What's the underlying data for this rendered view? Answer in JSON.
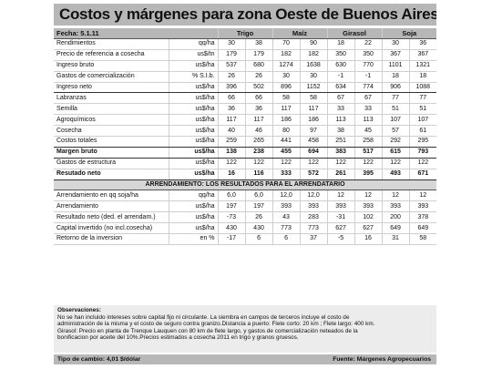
{
  "title": "Costos y márgenes para zona Oeste de Buenos Aires",
  "header": {
    "fecha": "Fecha: 5.1.11",
    "crops": [
      "Trigo",
      "Maíz",
      "Girasol",
      "Soja"
    ]
  },
  "rows": [
    {
      "label": "Rendimientos",
      "unit": "qq/ha",
      "values": [
        "30",
        "38",
        "70",
        "90",
        "18",
        "22",
        "30",
        "36"
      ]
    },
    {
      "label": "Precio de referencia a cosecha",
      "unit": "us$/tn",
      "values": [
        "179",
        "179",
        "182",
        "182",
        "350",
        "350",
        "367",
        "367"
      ]
    },
    {
      "label": "Ingreso bruto",
      "unit": "us$/ha",
      "values": [
        "537",
        "680",
        "1274",
        "1638",
        "630",
        "770",
        "1101",
        "1321"
      ]
    },
    {
      "label": "Gastos de comercialización",
      "unit": "% S.I.b.",
      "values": [
        "26",
        "26",
        "30",
        "30",
        "-1",
        "-1",
        "18",
        "18"
      ]
    },
    {
      "label": "Ingreso neto",
      "unit": "us$/ha",
      "values": [
        "396",
        "502",
        "896",
        "1152",
        "634",
        "774",
        "906",
        "1088"
      ]
    },
    {
      "label": "Labranzas",
      "unit": "us$/ha",
      "values": [
        "66",
        "66",
        "58",
        "58",
        "67",
        "67",
        "77",
        "77"
      ]
    },
    {
      "label": "Semilla",
      "unit": "us$/ha",
      "values": [
        "36",
        "36",
        "117",
        "117",
        "33",
        "33",
        "51",
        "51"
      ]
    },
    {
      "label": "Agroquímicos",
      "unit": "us$/ha",
      "values": [
        "117",
        "117",
        "186",
        "186",
        "113",
        "113",
        "107",
        "107"
      ]
    },
    {
      "label": "Cosecha",
      "unit": "us$/ha",
      "values": [
        "40",
        "46",
        "80",
        "97",
        "38",
        "45",
        "57",
        "61"
      ]
    },
    {
      "label": "Costos totales",
      "unit": "us$/ha",
      "values": [
        "259",
        "265",
        "441",
        "458",
        "251",
        "258",
        "292",
        "295"
      ]
    },
    {
      "label": "Margen bruto",
      "unit": "us$/ha",
      "values": [
        "138",
        "238",
        "455",
        "694",
        "383",
        "517",
        "615",
        "793"
      ]
    },
    {
      "label": "Gastos de estructura",
      "unit": "us$/ha",
      "values": [
        "122",
        "122",
        "122",
        "122",
        "122",
        "122",
        "122",
        "122"
      ]
    },
    {
      "label": "Resutado neto",
      "unit": "us$/ha",
      "values": [
        "16",
        "116",
        "333",
        "572",
        "261",
        "395",
        "493",
        "671"
      ]
    }
  ],
  "arrendamiento": {
    "heading": "ARRENDAMIENTO: LOS RESULTADOS PARA EL ARRENDATARIO",
    "rows": [
      {
        "label": "Arrendamiento en qq soja/ha",
        "unit": "qq/ha",
        "values": [
          "6,0",
          "6,0",
          "12,0",
          "12,0",
          "12",
          "12",
          "12",
          "12"
        ]
      },
      {
        "label": "Arrendamiento",
        "unit": "us$/ha",
        "values": [
          "197",
          "197",
          "393",
          "393",
          "393",
          "393",
          "393",
          "393"
        ]
      },
      {
        "label": "Resultado neto (ded. el arrendam.)",
        "unit": "us$/ha",
        "values": [
          "-73",
          "26",
          "43",
          "283",
          "-31",
          "102",
          "200",
          "378"
        ]
      },
      {
        "label": "Capital invertido (no incl.cosecha)",
        "unit": "us$/ha",
        "values": [
          "430",
          "430",
          "773",
          "773",
          "627",
          "627",
          "649",
          "649"
        ]
      },
      {
        "label": "Retorno de la inversion",
        "unit": "en %",
        "values": [
          "-17",
          "6",
          "6",
          "37",
          "-5",
          "16",
          "31",
          "58"
        ]
      }
    ]
  },
  "notes": {
    "title": "Observaciones:",
    "lines": [
      "No se han incluido intereses sobre capital fijo ni circulante. La siembra en campos de terceros incluye el costo de",
      "administración de la misma y el costo de seguro contra granizo.Distancia a puerto:  Flete corto: 20 km ; Flete largo: 400 km.",
      "Girasol: Precio en planta de Trenque Lauquen con 80 km de flete largo, y gastos  de  comercialización neteados de la",
      "bonificacion por aceite del 10%.Precios estimados a cosecha 2011 en trigo y granos gruesos."
    ]
  },
  "footer": {
    "left": "Tipo de cambio: 4,01  $/dólar",
    "right": "Fuente: Márgenes Agropecuarios"
  }
}
